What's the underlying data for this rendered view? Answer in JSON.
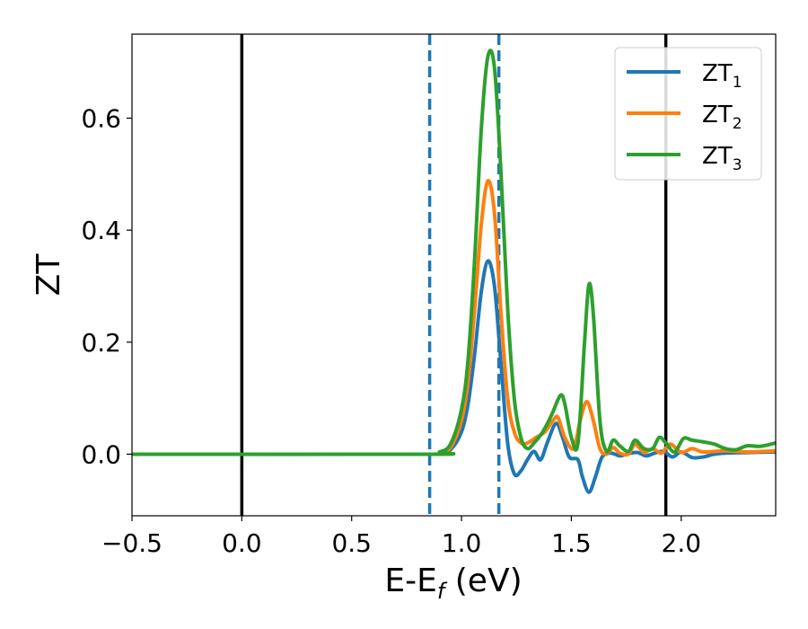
{
  "chart_data": {
    "type": "line",
    "xlabel_main": "E-E",
    "xlabel_sub": "f",
    "xlabel_unit": " (eV)",
    "ylabel": "ZT",
    "xlim": [
      -0.5,
      2.43
    ],
    "ylim": [
      -0.11,
      0.75
    ],
    "grid": false,
    "legend_position": "top-right",
    "x_ticks": [
      {
        "value": -0.5,
        "label": "−0.5"
      },
      {
        "value": 0.0,
        "label": "0.0"
      },
      {
        "value": 0.5,
        "label": "0.5"
      },
      {
        "value": 1.0,
        "label": "1.0"
      },
      {
        "value": 1.5,
        "label": "1.5"
      },
      {
        "value": 2.0,
        "label": "2.0"
      }
    ],
    "y_ticks": [
      {
        "value": 0.0,
        "label": "0.0"
      },
      {
        "value": 0.2,
        "label": "0.2"
      },
      {
        "value": 0.4,
        "label": "0.4"
      },
      {
        "value": 0.6,
        "label": "0.6"
      }
    ],
    "vlines": [
      {
        "x": 0.0,
        "style": "solid",
        "color": "#000000"
      },
      {
        "x": 1.93,
        "style": "solid",
        "color": "#000000"
      },
      {
        "x": 0.855,
        "style": "dashed",
        "color": "#1f77b4"
      },
      {
        "x": 1.17,
        "style": "dashed",
        "color": "#1f77b4"
      }
    ],
    "series": [
      {
        "name_main": "ZT",
        "name_sub": "1",
        "color": "#1f77b4",
        "points": [
          [
            -0.5,
            0
          ],
          [
            0.85,
            0
          ],
          [
            0.9,
            0.002
          ],
          [
            0.95,
            0.008
          ],
          [
            1.0,
            0.04
          ],
          [
            1.03,
            0.09
          ],
          [
            1.06,
            0.18
          ],
          [
            1.09,
            0.29
          ],
          [
            1.12,
            0.345
          ],
          [
            1.15,
            0.3
          ],
          [
            1.18,
            0.16
          ],
          [
            1.21,
            0.02
          ],
          [
            1.24,
            -0.035
          ],
          [
            1.27,
            -0.03
          ],
          [
            1.3,
            -0.01
          ],
          [
            1.33,
            0.005
          ],
          [
            1.36,
            -0.01
          ],
          [
            1.39,
            0.02
          ],
          [
            1.43,
            0.055
          ],
          [
            1.46,
            0.03
          ],
          [
            1.49,
            -0.005
          ],
          [
            1.53,
            -0.01
          ],
          [
            1.55,
            -0.04
          ],
          [
            1.58,
            -0.068
          ],
          [
            1.61,
            -0.04
          ],
          [
            1.64,
            -0.005
          ],
          [
            1.68,
            0.002
          ],
          [
            1.72,
            -0.003
          ],
          [
            1.76,
            0.001
          ],
          [
            1.8,
            0.003
          ],
          [
            1.84,
            -0.003
          ],
          [
            1.88,
            0.002
          ],
          [
            1.92,
            0.005
          ],
          [
            1.96,
            -0.005
          ],
          [
            2.0,
            0.004
          ],
          [
            2.05,
            -0.006
          ],
          [
            2.1,
            -0.005
          ],
          [
            2.15,
            0.0
          ],
          [
            2.2,
            0.002
          ],
          [
            2.3,
            0.003
          ],
          [
            2.43,
            0.004
          ]
        ]
      },
      {
        "name_main": "ZT",
        "name_sub": "2",
        "color": "#ff7f0e",
        "points": [
          [
            -0.5,
            0
          ],
          [
            0.85,
            0
          ],
          [
            0.9,
            0.003
          ],
          [
            0.95,
            0.012
          ],
          [
            1.0,
            0.06
          ],
          [
            1.03,
            0.13
          ],
          [
            1.06,
            0.26
          ],
          [
            1.09,
            0.41
          ],
          [
            1.12,
            0.488
          ],
          [
            1.15,
            0.43
          ],
          [
            1.18,
            0.25
          ],
          [
            1.21,
            0.1
          ],
          [
            1.24,
            0.04
          ],
          [
            1.27,
            0.02
          ],
          [
            1.3,
            0.02
          ],
          [
            1.34,
            0.03
          ],
          [
            1.38,
            0.04
          ],
          [
            1.42,
            0.062
          ],
          [
            1.44,
            0.065
          ],
          [
            1.47,
            0.03
          ],
          [
            1.51,
            0.01
          ],
          [
            1.54,
            0.06
          ],
          [
            1.57,
            0.094
          ],
          [
            1.6,
            0.06
          ],
          [
            1.63,
            0.01
          ],
          [
            1.66,
            0.0
          ],
          [
            1.69,
            0.012
          ],
          [
            1.72,
            0.002
          ],
          [
            1.76,
            0.0
          ],
          [
            1.79,
            0.018
          ],
          [
            1.83,
            0.003
          ],
          [
            1.87,
            0.01
          ],
          [
            1.91,
            0.002
          ],
          [
            1.95,
            0.018
          ],
          [
            2.0,
            0.003
          ],
          [
            2.05,
            0.01
          ],
          [
            2.1,
            0.004
          ],
          [
            2.2,
            0.006
          ],
          [
            2.3,
            0.004
          ],
          [
            2.43,
            0.006
          ]
        ]
      },
      {
        "name_main": "ZT",
        "name_sub": "3",
        "color": "#2ca02c",
        "points": [
          [
            -0.5,
            0
          ],
          [
            0.85,
            0
          ],
          [
            0.9,
            0.004
          ],
          [
            0.95,
            0.018
          ],
          [
            1.0,
            0.08
          ],
          [
            1.03,
            0.17
          ],
          [
            1.06,
            0.35
          ],
          [
            1.09,
            0.58
          ],
          [
            1.12,
            0.71
          ],
          [
            1.15,
            0.69
          ],
          [
            1.18,
            0.5
          ],
          [
            1.21,
            0.26
          ],
          [
            1.24,
            0.1
          ],
          [
            1.27,
            0.03
          ],
          [
            1.3,
            0.01
          ],
          [
            1.33,
            0.02
          ],
          [
            1.37,
            0.04
          ],
          [
            1.41,
            0.07
          ],
          [
            1.45,
            0.105
          ],
          [
            1.47,
            0.09
          ],
          [
            1.5,
            0.03
          ],
          [
            1.53,
            0.02
          ],
          [
            1.56,
            0.2
          ],
          [
            1.58,
            0.303
          ],
          [
            1.6,
            0.25
          ],
          [
            1.63,
            0.06
          ],
          [
            1.66,
            0.005
          ],
          [
            1.69,
            0.025
          ],
          [
            1.72,
            0.015
          ],
          [
            1.76,
            0.005
          ],
          [
            1.79,
            0.025
          ],
          [
            1.83,
            0.01
          ],
          [
            1.87,
            0.01
          ],
          [
            1.9,
            0.03
          ],
          [
            1.93,
            0.02
          ],
          [
            1.97,
            0.004
          ],
          [
            2.01,
            0.028
          ],
          [
            2.05,
            0.025
          ],
          [
            2.1,
            0.022
          ],
          [
            2.15,
            0.018
          ],
          [
            2.2,
            0.01
          ],
          [
            2.25,
            0.008
          ],
          [
            2.3,
            0.015
          ],
          [
            2.36,
            0.014
          ],
          [
            2.43,
            0.02
          ]
        ]
      }
    ]
  }
}
